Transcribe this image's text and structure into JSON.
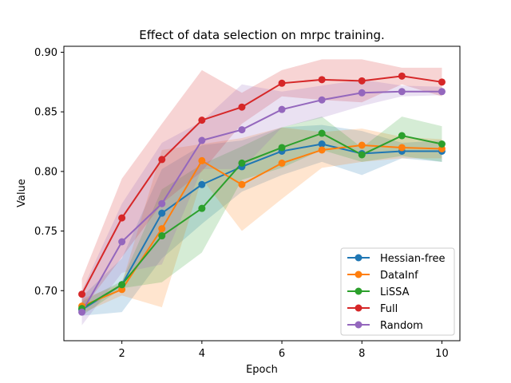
{
  "chart_data": {
    "type": "line",
    "title": "Effect of data selection on mrpc training.",
    "xlabel": "Epoch",
    "ylabel": "Value",
    "xlim": [
      0.55,
      10.45
    ],
    "ylim": [
      0.658,
      0.905
    ],
    "xticks": [
      2,
      4,
      6,
      8,
      10
    ],
    "yticks": [
      0.7,
      0.75,
      0.8,
      0.85,
      0.9
    ],
    "ytick_labels": [
      "0.70",
      "0.75",
      "0.80",
      "0.85",
      "0.90"
    ],
    "grid": false,
    "legend_position": "lower-right",
    "x": [
      1,
      2,
      3,
      4,
      5,
      6,
      7,
      8,
      9,
      10
    ],
    "series": [
      {
        "name": "Hessian-free",
        "color": "#1f77b4",
        "values": [
          0.684,
          0.705,
          0.765,
          0.789,
          0.804,
          0.817,
          0.823,
          0.815,
          0.817,
          0.817
        ],
        "lower": [
          0.679,
          0.682,
          0.727,
          0.756,
          0.783,
          0.797,
          0.808,
          0.797,
          0.811,
          0.808
        ],
        "upper": [
          0.695,
          0.727,
          0.802,
          0.822,
          0.826,
          0.837,
          0.839,
          0.834,
          0.824,
          0.826
        ]
      },
      {
        "name": "DataInf",
        "color": "#ff7f0e",
        "values": [
          0.687,
          0.701,
          0.752,
          0.809,
          0.789,
          0.807,
          0.818,
          0.822,
          0.82,
          0.819
        ],
        "lower": [
          0.681,
          0.696,
          0.686,
          0.794,
          0.75,
          0.777,
          0.803,
          0.808,
          0.811,
          0.811
        ],
        "upper": [
          0.693,
          0.706,
          0.818,
          0.823,
          0.828,
          0.837,
          0.833,
          0.836,
          0.829,
          0.827
        ]
      },
      {
        "name": "LiSSA",
        "color": "#2ca02c",
        "values": [
          0.685,
          0.705,
          0.746,
          0.769,
          0.807,
          0.82,
          0.832,
          0.814,
          0.83,
          0.823
        ],
        "lower": [
          0.679,
          0.702,
          0.707,
          0.732,
          0.793,
          0.803,
          0.818,
          0.808,
          0.813,
          0.808
        ],
        "upper": [
          0.691,
          0.708,
          0.785,
          0.806,
          0.821,
          0.837,
          0.846,
          0.82,
          0.846,
          0.838
        ]
      },
      {
        "name": "Full",
        "color": "#d62728",
        "values": [
          0.697,
          0.761,
          0.81,
          0.843,
          0.854,
          0.874,
          0.877,
          0.876,
          0.88,
          0.875
        ],
        "lower": [
          0.684,
          0.728,
          0.773,
          0.8,
          0.84,
          0.863,
          0.86,
          0.858,
          0.873,
          0.863
        ],
        "upper": [
          0.71,
          0.794,
          0.84,
          0.885,
          0.866,
          0.885,
          0.894,
          0.894,
          0.887,
          0.887
        ]
      },
      {
        "name": "Random",
        "color": "#9467bd",
        "values": [
          0.682,
          0.741,
          0.773,
          0.826,
          0.835,
          0.852,
          0.86,
          0.866,
          0.867,
          0.867
        ],
        "lower": [
          0.671,
          0.715,
          0.722,
          0.802,
          0.802,
          0.837,
          0.845,
          0.855,
          0.863,
          0.864
        ],
        "upper": [
          0.7,
          0.773,
          0.824,
          0.842,
          0.873,
          0.867,
          0.872,
          0.877,
          0.872,
          0.871
        ]
      }
    ]
  }
}
